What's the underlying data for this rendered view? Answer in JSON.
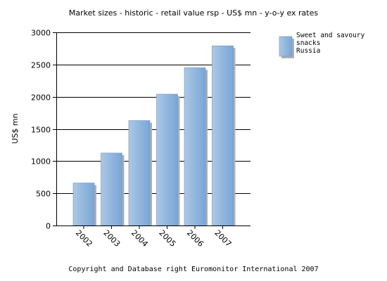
{
  "chart_data": {
    "type": "bar",
    "title": "Market sizes  - historic  - retail value rsp  - US$ mn  - y-o-y ex rates",
    "xlabel": "",
    "ylabel": "US$ mn",
    "categories": [
      "2002",
      "2003",
      "2004",
      "2005",
      "2006",
      "2007"
    ],
    "series": [
      {
        "name": "Sweet and savoury snacks Russia",
        "legend_lines": [
          "Sweet and savoury",
          "snacks",
          "Russia"
        ],
        "values": [
          660,
          1125,
          1630,
          2040,
          2450,
          2790
        ]
      }
    ],
    "ylim": [
      0,
      3000
    ],
    "yticks": [
      0,
      500,
      1000,
      1500,
      2000,
      2500,
      3000
    ],
    "grid": "horizontal",
    "legend_position": "top-right",
    "bar_color": "#8db4dc",
    "bar_color_dark": "#6f9bcd"
  },
  "footer": {
    "copyright": "Copyright and Database right Euromonitor International 2007"
  }
}
